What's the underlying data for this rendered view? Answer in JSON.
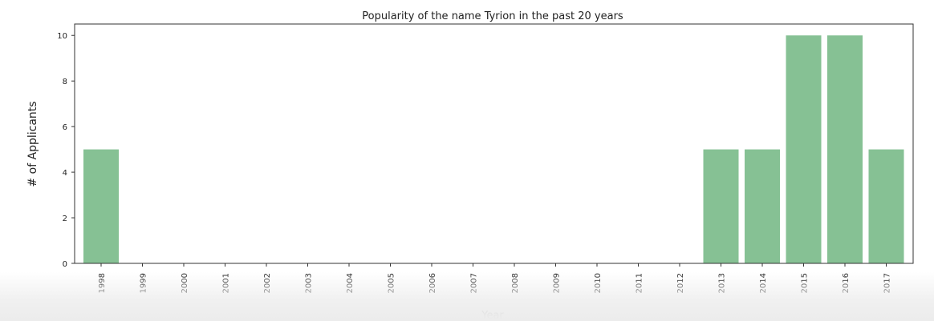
{
  "chart_data": {
    "type": "bar",
    "title": "Popularity of the name Tyrion in the past 20 years",
    "xlabel": "Year",
    "ylabel": "# of Applicants",
    "categories": [
      "1998",
      "1999",
      "2000",
      "2001",
      "2002",
      "2003",
      "2004",
      "2005",
      "2006",
      "2007",
      "2008",
      "2009",
      "2010",
      "2011",
      "2012",
      "2013",
      "2014",
      "2015",
      "2016",
      "2017"
    ],
    "values": [
      5,
      0,
      0,
      0,
      0,
      0,
      0,
      0,
      0,
      0,
      0,
      0,
      0,
      0,
      0,
      5,
      5,
      10,
      10,
      5
    ],
    "yticks": [
      0,
      2,
      4,
      6,
      8,
      10
    ],
    "ylim": [
      0,
      10.5
    ],
    "grid": false,
    "colors": {
      "bar": "#86c194",
      "bar_edge": "#7bb88a",
      "axis": "#333333",
      "text": "#222222"
    }
  }
}
